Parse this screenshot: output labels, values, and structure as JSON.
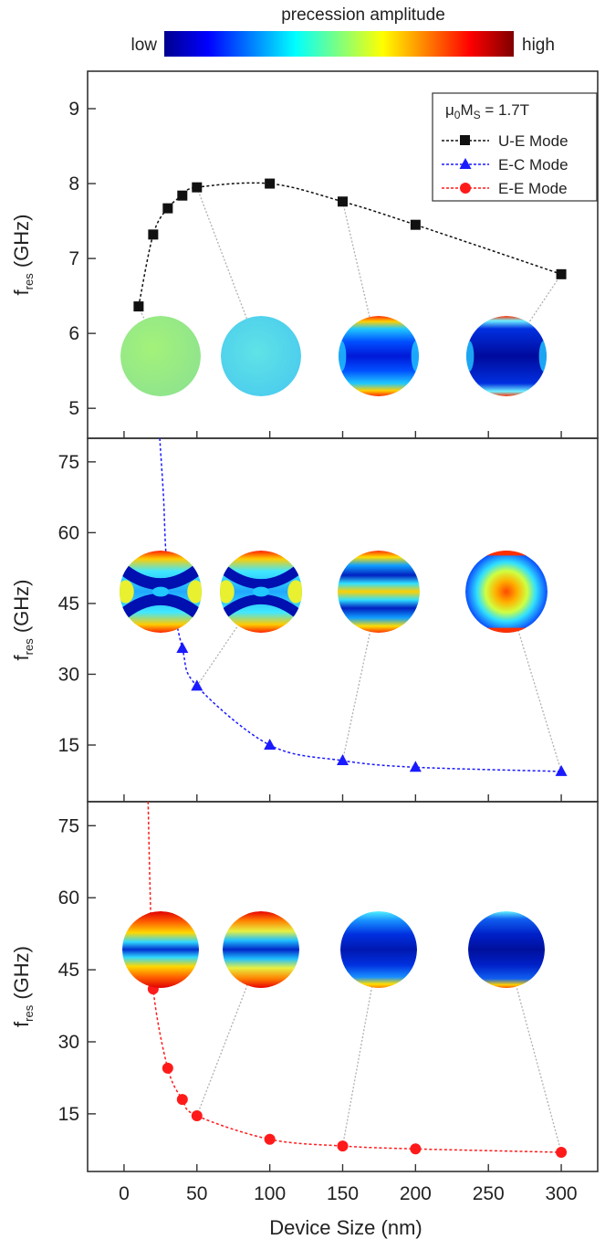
{
  "colorbar": {
    "title": "precession amplitude",
    "low_label": "low",
    "high_label": "high"
  },
  "legend": {
    "field_parts": [
      "μ",
      "0",
      "M",
      "S",
      " = 1.7T"
    ],
    "entries": [
      "U-E Mode",
      "E-C Mode",
      "E-E Mode"
    ]
  },
  "x_axis": {
    "label": "Device Size (nm)",
    "ticks": [
      0,
      50,
      100,
      150,
      200,
      250,
      300
    ],
    "range": [
      -25,
      325
    ]
  },
  "y_label_parts": [
    "f",
    "res",
    " (GHz)"
  ],
  "colors": {
    "ue": "#111111",
    "ec": "#1a1aff",
    "ee": "#ff1a1a",
    "connector": "#b0b0b0"
  },
  "chart_data": [
    {
      "type": "line",
      "panel": "top",
      "ylabel": "f_res (GHz)",
      "xlabel": "",
      "xlim": [
        -25,
        325
      ],
      "ylim": [
        4.6,
        9.5
      ],
      "y_ticks": [
        5,
        6,
        7,
        8,
        9
      ],
      "series": [
        {
          "name": "U-E Mode",
          "marker": "square",
          "x": [
            10,
            20,
            30,
            40,
            50,
            100,
            150,
            200,
            300
          ],
          "y": [
            6.36,
            7.32,
            7.67,
            7.84,
            7.95,
            8.0,
            7.76,
            7.45,
            6.79
          ]
        }
      ],
      "mode_images": [
        {
          "x": 10,
          "pattern": "uniform-green"
        },
        {
          "x": 50,
          "pattern": "uniform-cyan"
        },
        {
          "x": 150,
          "pattern": "edge-hot-blue"
        },
        {
          "x": 300,
          "pattern": "edge-dark-blue"
        }
      ]
    },
    {
      "type": "line",
      "panel": "middle",
      "ylabel": "f_res (GHz)",
      "xlabel": "",
      "xlim": [
        -25,
        325
      ],
      "ylim": [
        3,
        80
      ],
      "y_ticks": [
        15,
        30,
        45,
        60,
        75
      ],
      "series": [
        {
          "name": "E-C Mode",
          "marker": "triangle",
          "x": [
            30,
            40,
            50,
            100,
            150,
            200,
            300
          ],
          "y": [
            51.5,
            35.5,
            27.5,
            15.0,
            11.7,
            10.3,
            9.4
          ]
        }
      ],
      "mode_images": [
        {
          "x": 30,
          "pattern": "cross"
        },
        {
          "x": 50,
          "pattern": "cross-soft"
        },
        {
          "x": 150,
          "pattern": "center-band"
        },
        {
          "x": 300,
          "pattern": "center-blob"
        }
      ]
    },
    {
      "type": "line",
      "panel": "bottom",
      "ylabel": "f_res (GHz)",
      "xlabel": "Device Size (nm)",
      "xlim": [
        -25,
        325
      ],
      "ylim": [
        3,
        80
      ],
      "y_ticks": [
        15,
        30,
        45,
        60,
        75
      ],
      "series": [
        {
          "name": "E-E Mode",
          "marker": "circle",
          "x": [
            20,
            30,
            40,
            50,
            100,
            150,
            200,
            300
          ],
          "y": [
            41,
            24.5,
            18,
            14.6,
            9.7,
            8.3,
            7.7,
            7.0
          ]
        }
      ],
      "mode_images": [
        {
          "x": 20,
          "pattern": "edge-red-strong"
        },
        {
          "x": 50,
          "pattern": "edge-red"
        },
        {
          "x": 150,
          "pattern": "edge-cyan-blue"
        },
        {
          "x": 300,
          "pattern": "edge-blue"
        }
      ]
    }
  ]
}
